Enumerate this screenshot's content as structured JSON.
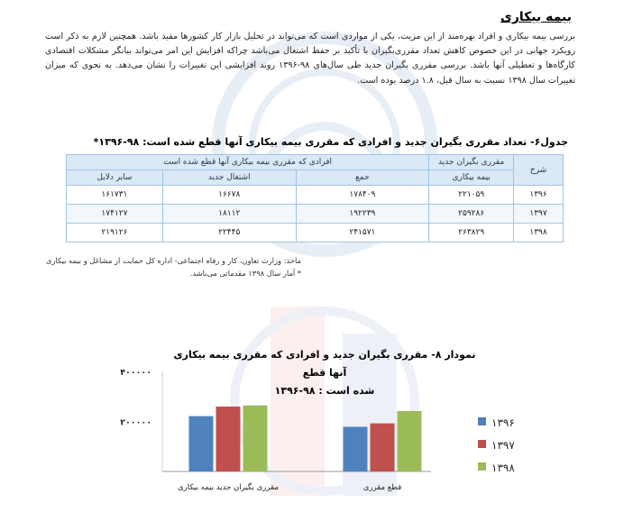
{
  "section_title": "بیمه بیکاری",
  "paragraph": "بررسی بیمه بیکاری و افراد بهره‌مند از این مزیت، یکی از مواردی است که می‌تواند در تحلیل بازار کار کشورها مفید باشد. همچنین لازم به ذکر است رویکرد جهانی در این خصوص کاهش تعداد مقرری‌بگیران با تأکید بر حفظ اشتغال می‌باشد چراکه افزایش این امر می‌تواند بیانگر مشکلات اقتصادی کارگاه‌ها و تعطیلی آنها باشد. بررسی مقرری بگیران جدید طی سال‌های ۹۸-۱۳۹۶ روند افزایشی این تغییرات را نشان می‌دهد. به نحوی که میزان تغییرات سال ۱۳۹۸ نسبت به سال قبل، ۱.۸ درصد بوده است.",
  "table": {
    "caption": "جدول۶- تعداد مقرری بگیران جدید و افرادی که مقرری بیمه بیکاری آنها قطع شده است: ۹۸-۱۳۹۶*",
    "header": {
      "col_year": "شرح",
      "col_new": "مقرری بگیران جدید",
      "col_new_sub": "بیمه بیکاری",
      "group_cut": "افرادی که مقرری بیمه بیکاری آنها قطع شده است",
      "col_total": "جمع",
      "col_employment": "اشتغال جدید",
      "col_other": "سایر دلایل"
    },
    "rows": [
      {
        "year": "۱۳۹۶",
        "new": "۲۲۱۰۵۹",
        "total": "۱۷۸۴۰۹",
        "employment": "۱۶۶۷۸",
        "other": "۱۶۱۷۳۱"
      },
      {
        "year": "۱۳۹۷",
        "new": "۲۵۹۲۸۶",
        "total": "۱۹۲۲۳۹",
        "employment": "۱۸۱۱۲",
        "other": "۱۷۴۱۲۷"
      },
      {
        "year": "۱۳۹۸",
        "new": "۲۶۳۸۲۹",
        "total": "۲۴۱۵۷۱",
        "employment": "۲۲۴۴۵",
        "other": "۲۱۹۱۲۶"
      }
    ],
    "source_line1": "ماخذ: وزارت تعاون، کار و رفاه اجتماعی- اداره کل حمایت از مشاغل و بیمه بیکاری",
    "source_line2": "* آمار سال ۱۳۹۸ مقدماتی می‌باشد."
  },
  "chart_title_line1": "نمودار ۸- مقرری بگیران جدید و افرادی که مقرری بیمه بیکاری آنها قطع",
  "chart_title_line2": "شده است : ۹۸-۱۳۹۶",
  "colors": {
    "y1396": "#4f81bd",
    "y1397": "#c0504d",
    "y1398": "#9bbb59",
    "table_header_bg": "#dbe8f5",
    "table_border": "#9fc4e6"
  },
  "chart_data": {
    "type": "bar",
    "categories": [
      "مقرری بگیران جدید بیمه بیکاری",
      "قطع مقرری"
    ],
    "series": [
      {
        "name": "۱۳۹۶",
        "values": [
          221059,
          178409
        ]
      },
      {
        "name": "۱۳۹۷",
        "values": [
          259286,
          192239
        ]
      },
      {
        "name": "۱۳۹۸",
        "values": [
          263829,
          241571
        ]
      }
    ],
    "yticks": [
      "۴۰۰۰۰۰",
      "۲۰۰۰۰۰"
    ],
    "ytick_values": [
      400000,
      200000
    ],
    "ylim": [
      0,
      400000
    ],
    "legend": "right",
    "grid": false
  }
}
